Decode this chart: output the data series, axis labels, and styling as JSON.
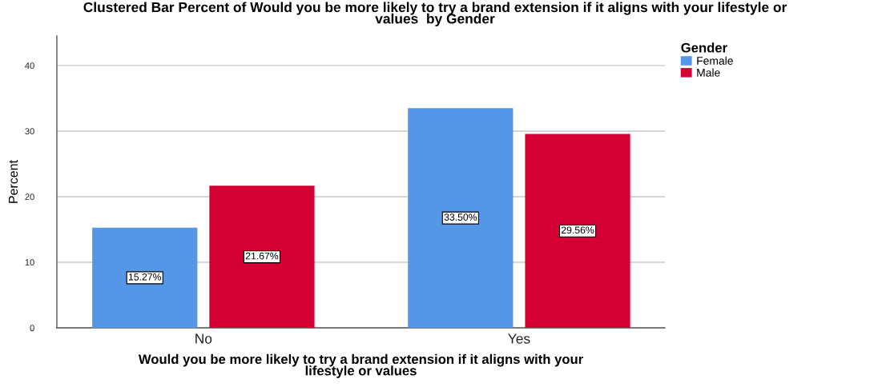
{
  "chart_data": {
    "type": "bar",
    "title": "Clustered Bar Percent of Would you be more likely to try a brand extension if it aligns with your lifestyle or values  by Gender",
    "xlabel": "Would you be more likely to try a brand extension if it aligns with your lifestyle or values",
    "ylabel": "Percent",
    "legend_title": "Gender",
    "categories": [
      "No",
      "Yes"
    ],
    "series": [
      {
        "name": "Female",
        "color": "#5596e6",
        "values": [
          15.27,
          33.5
        ],
        "value_labels": [
          "15.27%",
          "33.50%"
        ]
      },
      {
        "name": "Male",
        "color": "#d40033",
        "values": [
          21.67,
          29.56
        ],
        "value_labels": [
          "21.67%",
          "29.56%"
        ]
      }
    ],
    "ylim": [
      0,
      44.5
    ],
    "yticks": [
      0,
      10,
      20,
      30,
      40
    ],
    "grid": "y",
    "legend": "top right"
  }
}
